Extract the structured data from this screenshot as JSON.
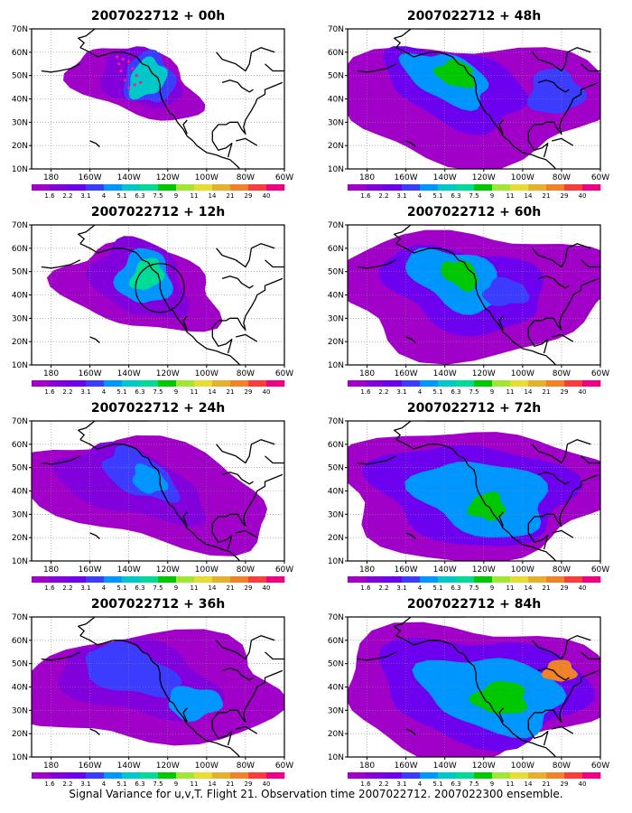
{
  "caption": "Signal Variance for u,v,T. Flight 21. Observation time 2007022712. 2007022300 ensemble.",
  "axis": {
    "lon_labels": [
      "180",
      "160W",
      "140W",
      "120W",
      "100W",
      "80W",
      "60W"
    ],
    "lat_labels": [
      "10N",
      "20N",
      "30N",
      "40N",
      "50N",
      "60N",
      "70N"
    ]
  },
  "colorbar": {
    "labels": [
      "1.6",
      "2.2",
      "3.1",
      "4",
      "5.1",
      "6.3",
      "7.5",
      "9",
      "11",
      "14",
      "21",
      "29",
      "40"
    ],
    "colors": [
      "#a000c8",
      "#8200dc",
      "#6e00f0",
      "#3c3cff",
      "#0096ff",
      "#00c8c8",
      "#00dc96",
      "#00c800",
      "#a0e632",
      "#e6dc32",
      "#e6af2d",
      "#f08228",
      "#fa3c3c",
      "#f00082"
    ]
  },
  "panels": [
    {
      "title": "2007022712 + 00h",
      "marker": "dots"
    },
    {
      "title": "2007022712 + 48h",
      "marker": "none"
    },
    {
      "title": "2007022712 + 12h",
      "marker": "circle"
    },
    {
      "title": "2007022712 + 60h",
      "marker": "none"
    },
    {
      "title": "2007022712 + 24h",
      "marker": "none"
    },
    {
      "title": "2007022712 + 72h",
      "marker": "none"
    },
    {
      "title": "2007022712 + 36h",
      "marker": "none"
    },
    {
      "title": "2007022712 + 84h",
      "marker": "none"
    }
  ]
}
